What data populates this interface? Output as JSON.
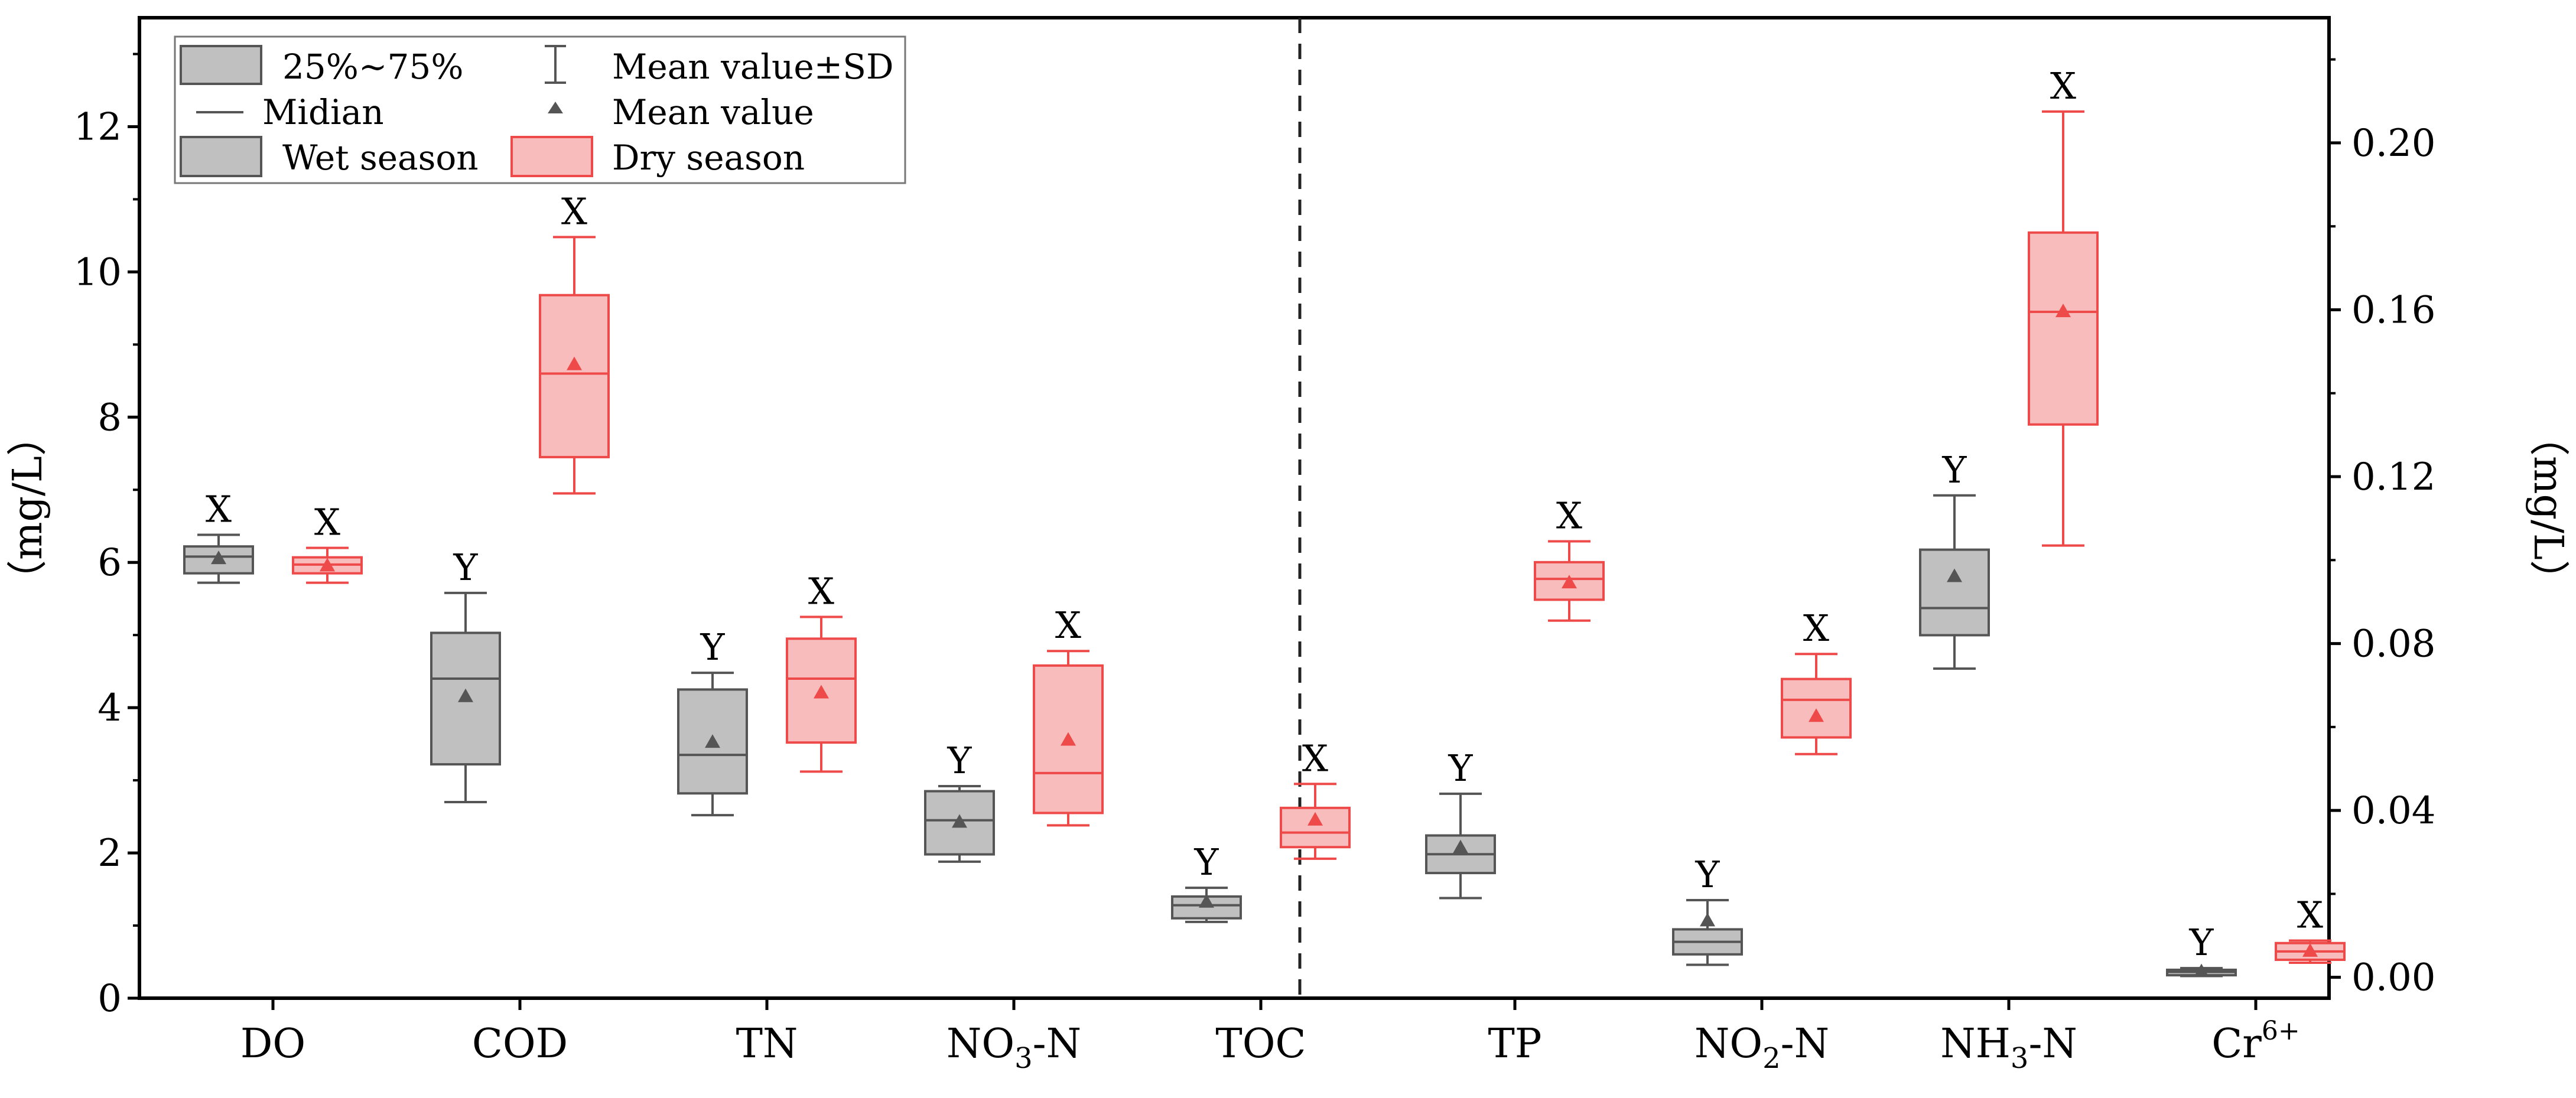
{
  "chart_data": {
    "type": "box",
    "y_left_label": "（mg/L）",
    "y_right_label": "（mg/L）",
    "y_left_range": [
      0,
      13.5
    ],
    "y_right_range": [
      -0.005,
      0.23
    ],
    "y_left_ticks": [
      {
        "v": 0,
        "label": "0"
      },
      {
        "v": 2,
        "label": "2"
      },
      {
        "v": 4,
        "label": "4"
      },
      {
        "v": 6,
        "label": "6"
      },
      {
        "v": 8,
        "label": "8"
      },
      {
        "v": 10,
        "label": "10"
      },
      {
        "v": 12,
        "label": "12"
      }
    ],
    "y_right_ticks": [
      {
        "v": 0,
        "label": "0.00"
      },
      {
        "v": 0.04,
        "label": "0.04"
      },
      {
        "v": 0.08,
        "label": "0.08"
      },
      {
        "v": 0.12,
        "label": "0.12"
      },
      {
        "v": 0.16,
        "label": "0.16"
      },
      {
        "v": 0.2,
        "label": "0.20"
      }
    ],
    "categories": [
      {
        "name": "DO",
        "axis": "left"
      },
      {
        "name": "COD",
        "axis": "left"
      },
      {
        "name": "TN",
        "axis": "left"
      },
      {
        "name": "NO3-N",
        "base": "NO",
        "sub": "3",
        "rest": "-N",
        "axis": "left"
      },
      {
        "name": "TOC",
        "axis": "left"
      },
      {
        "name": "TP",
        "axis": "right"
      },
      {
        "name": "NO2-N",
        "base": "NO",
        "sub": "2",
        "rest": "-N",
        "axis": "right"
      },
      {
        "name": "NH3-N",
        "base": "NH",
        "sub": "3",
        "rest": "-N",
        "axis": "right"
      },
      {
        "name": "Cr6+",
        "base": "Cr",
        "sup": "6+",
        "axis": "right"
      }
    ],
    "series": [
      {
        "name": "Wet season",
        "color": "#555555",
        "fill": "#c0c0c0",
        "boxes": [
          {
            "min": 5.72,
            "q1": 5.85,
            "median": 6.08,
            "q3": 6.22,
            "max": 6.38,
            "mean": 6.05,
            "letter": "X"
          },
          {
            "min": 2.7,
            "q1": 3.22,
            "median": 4.4,
            "q3": 5.03,
            "max": 5.58,
            "mean": 4.15,
            "letter": "Y"
          },
          {
            "min": 2.52,
            "q1": 2.82,
            "median": 3.35,
            "q3": 4.25,
            "max": 4.48,
            "mean": 3.52,
            "letter": "Y"
          },
          {
            "min": 1.88,
            "q1": 1.98,
            "median": 2.45,
            "q3": 2.85,
            "max": 2.92,
            "mean": 2.42,
            "letter": "Y"
          },
          {
            "min": 1.05,
            "q1": 1.1,
            "median": 1.28,
            "q3": 1.4,
            "max": 1.52,
            "mean": 1.32,
            "letter": "Y"
          },
          {
            "min": 0.019,
            "q1": 0.025,
            "median": 0.0295,
            "q3": 0.034,
            "max": 0.044,
            "mean": 0.031,
            "letter": "Y"
          },
          {
            "min": 0.003,
            "q1": 0.0055,
            "median": 0.0085,
            "q3": 0.0115,
            "max": 0.0185,
            "mean": 0.0135,
            "letter": "Y"
          },
          {
            "min": 0.074,
            "q1": 0.082,
            "median": 0.0885,
            "q3": 0.1025,
            "max": 0.1155,
            "mean": 0.096,
            "letter": "Y"
          },
          {
            "min": 0.0003,
            "q1": 0.0005,
            "median": 0.0013,
            "q3": 0.0018,
            "max": 0.0022,
            "mean": 0.0013,
            "letter": "Y"
          }
        ]
      },
      {
        "name": "Dry season",
        "color": "#ee4a4a",
        "fill": "#f9bcbc",
        "boxes": [
          {
            "min": 5.72,
            "q1": 5.85,
            "median": 5.97,
            "q3": 6.07,
            "max": 6.2,
            "mean": 5.95,
            "letter": "X"
          },
          {
            "min": 6.95,
            "q1": 7.45,
            "median": 8.6,
            "q3": 9.68,
            "max": 10.48,
            "mean": 8.72,
            "letter": "X"
          },
          {
            "min": 3.12,
            "q1": 3.52,
            "median": 4.4,
            "q3": 4.95,
            "max": 5.25,
            "mean": 4.2,
            "letter": "X"
          },
          {
            "min": 2.38,
            "q1": 2.55,
            "median": 3.1,
            "q3": 4.58,
            "max": 4.78,
            "mean": 3.55,
            "letter": "X"
          },
          {
            "min": 1.92,
            "q1": 2.08,
            "median": 2.28,
            "q3": 2.62,
            "max": 2.95,
            "mean": 2.45,
            "letter": "X"
          },
          {
            "min": 0.0855,
            "q1": 0.0905,
            "median": 0.0955,
            "q3": 0.0995,
            "max": 0.1045,
            "mean": 0.0945,
            "letter": "X"
          },
          {
            "min": 0.0535,
            "q1": 0.0575,
            "median": 0.0665,
            "q3": 0.0715,
            "max": 0.0775,
            "mean": 0.0625,
            "letter": "X"
          },
          {
            "min": 0.1035,
            "q1": 0.1325,
            "median": 0.1595,
            "q3": 0.1785,
            "max": 0.2075,
            "mean": 0.1595,
            "letter": "X"
          },
          {
            "min": 0.0035,
            "q1": 0.0042,
            "median": 0.0062,
            "q3": 0.0082,
            "max": 0.0088,
            "mean": 0.0062,
            "letter": "X"
          }
        ]
      }
    ],
    "legend": {
      "position": "top-left",
      "items": [
        {
          "kind": "box",
          "label": "25%~75%"
        },
        {
          "kind": "sd",
          "label": "Mean value±SD"
        },
        {
          "kind": "median",
          "label": "Midian"
        },
        {
          "kind": "mean",
          "label": "Mean value"
        },
        {
          "kind": "wet",
          "label": "Wet season"
        },
        {
          "kind": "dry",
          "label": "Dry season"
        }
      ]
    },
    "divider": {
      "between": [
        "TOC",
        "TP"
      ],
      "style": "dashed"
    }
  }
}
